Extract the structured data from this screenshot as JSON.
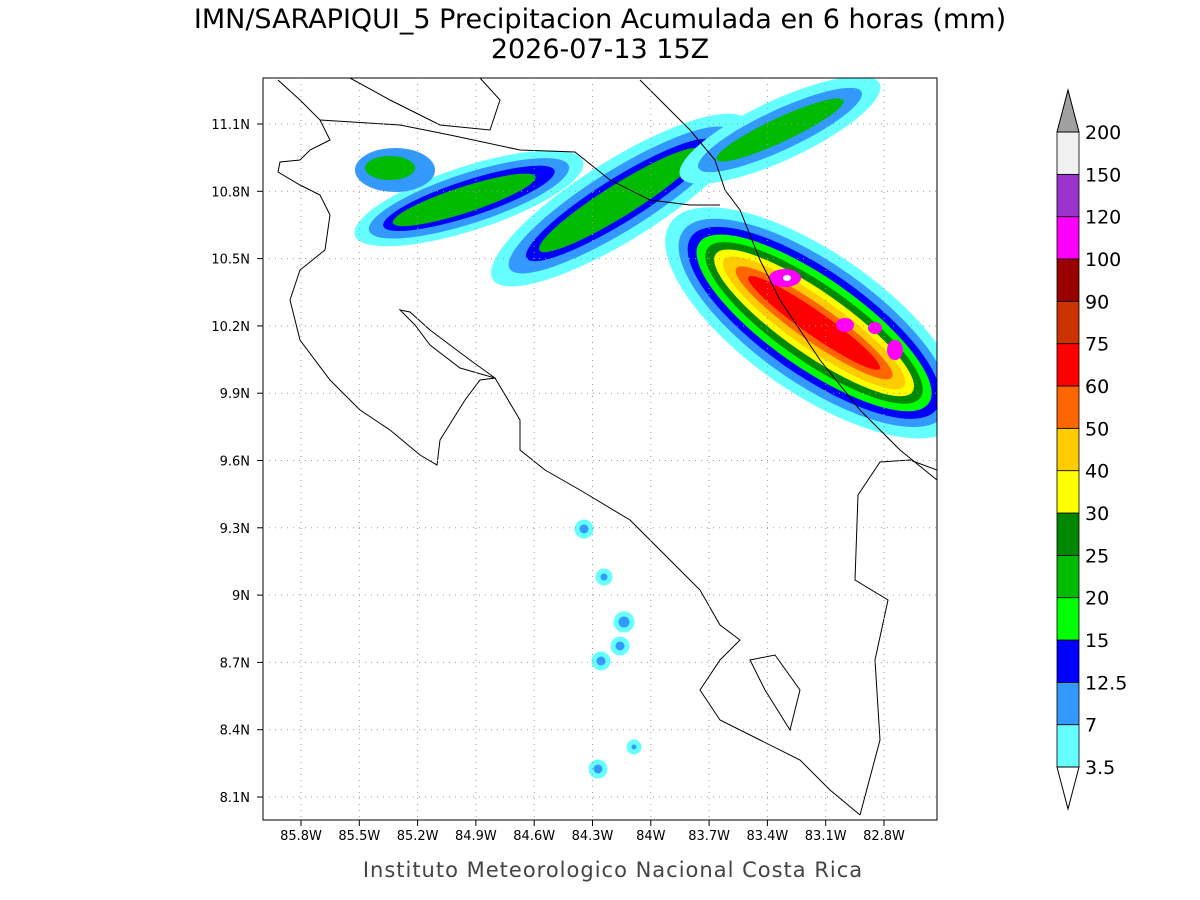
{
  "header": {
    "title": "IMN/SARAPIQUI_5 Precipitacion Acumulada en 6 horas (mm)",
    "subtitle": "2026-07-13 15Z"
  },
  "map": {
    "lon_labels": [
      "85.8W",
      "85.5W",
      "85.2W",
      "84.9W",
      "84.6W",
      "84.3W",
      "84W",
      "83.7W",
      "83.4W",
      "83.1W",
      "82.8W"
    ],
    "lat_labels": [
      "11.1N",
      "10.8N",
      "10.5N",
      "10.2N",
      "9.9N",
      "9.6N",
      "9.3N",
      "9N",
      "8.7N",
      "8.4N",
      "8.1N"
    ]
  },
  "colorbar": {
    "levels": [
      3.5,
      7,
      12.5,
      15,
      20,
      25,
      30,
      40,
      50,
      60,
      75,
      90,
      100,
      120,
      150,
      200
    ],
    "colors": [
      "#66ffff",
      "#3399ff",
      "#0000ff",
      "#00ff00",
      "#00bb00",
      "#008800",
      "#ffff00",
      "#ffcc00",
      "#ff6600",
      "#ff0000",
      "#cc3300",
      "#990000",
      "#ff00ff",
      "#9933cc",
      "#f0f0f0"
    ],
    "over_color": "#a0a0a0",
    "under_color": "#ffffff"
  },
  "footer": {
    "credit": "Instituto Meteorologico Nacional Costa Rica"
  }
}
